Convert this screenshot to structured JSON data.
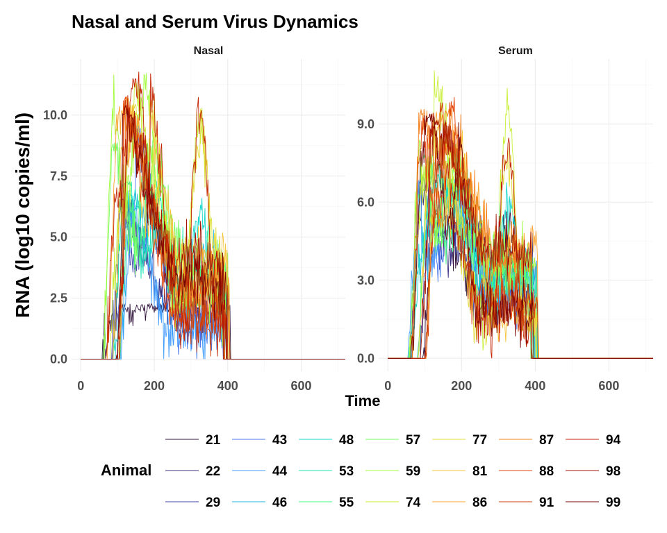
{
  "chart_data": {
    "type": "line",
    "title": "Nasal and Serum Virus Dynamics",
    "xlabel": "Time",
    "ylabel": "RNA (log10 copies/ml)",
    "legend": {
      "title": "Animal",
      "position": "bottom"
    },
    "grid": true,
    "panels": [
      {
        "name": "Nasal",
        "xlim": [
          -25,
          720
        ],
        "ylim": [
          -0.5,
          12.3
        ],
        "xticks": [
          0,
          200,
          400,
          600
        ],
        "xtick_labels": [
          "0",
          "200",
          "400",
          "600"
        ],
        "yticks": [
          0,
          2.5,
          5,
          7.5,
          10
        ],
        "ytick_labels": [
          "0.0",
          "2.5",
          "5.0",
          "7.5",
          "10.0"
        ],
        "max_y": 11.8
      },
      {
        "name": "Serum",
        "xlim": [
          -25,
          720
        ],
        "ylim": [
          -0.5,
          11.5
        ],
        "xticks": [
          0,
          200,
          400,
          600
        ],
        "xtick_labels": [
          "0",
          "200",
          "400",
          "600"
        ],
        "yticks": [
          0,
          3,
          6,
          9
        ],
        "ytick_labels": [
          "0.0",
          "3.0",
          "6.0",
          "9.0"
        ],
        "max_y": 11.1
      }
    ],
    "series": [
      {
        "name": "21",
        "color": "#30123b",
        "nasal_peak": 2.3,
        "serum_peak": 5.8
      },
      {
        "name": "22",
        "color": "#3b2d7f",
        "nasal_peak": 6.6,
        "serum_peak": 7.1
      },
      {
        "name": "29",
        "color": "#4145ab",
        "nasal_peak": 6.8,
        "serum_peak": 7.2
      },
      {
        "name": "43",
        "color": "#4675ed",
        "nasal_peak": 9.8,
        "serum_peak": 7.0
      },
      {
        "name": "44",
        "color": "#3e9bfe",
        "nasal_peak": 6.6,
        "serum_peak": 6.9
      },
      {
        "name": "46",
        "color": "#26b3e6",
        "nasal_peak": 6.5,
        "serum_peak": 6.6
      },
      {
        "name": "48",
        "color": "#18d6cb",
        "nasal_peak": 7.0,
        "serum_peak": 7.1
      },
      {
        "name": "53",
        "color": "#1ae4b6",
        "nasal_peak": 7.4,
        "serum_peak": 7.6
      },
      {
        "name": "55",
        "color": "#46f884",
        "nasal_peak": 8.1,
        "serum_peak": 7.9
      },
      {
        "name": "57",
        "color": "#72fe5e",
        "nasal_peak": 9.0,
        "serum_peak": 8.2
      },
      {
        "name": "59",
        "color": "#a2fc3c",
        "nasal_peak": 11.8,
        "serum_peak": 8.6
      },
      {
        "name": "74",
        "color": "#c7ef34",
        "nasal_peak": 11.4,
        "serum_peak": 11.1
      },
      {
        "name": "77",
        "color": "#e1dd37",
        "nasal_peak": 10.5,
        "serum_peak": 8.8
      },
      {
        "name": "81",
        "color": "#f6c33a",
        "nasal_peak": 10.7,
        "serum_peak": 9.0
      },
      {
        "name": "86",
        "color": "#fea431",
        "nasal_peak": 10.4,
        "serum_peak": 9.5
      },
      {
        "name": "87",
        "color": "#f3801c",
        "nasal_peak": 10.9,
        "serum_peak": 9.7
      },
      {
        "name": "88",
        "color": "#e4460a",
        "nasal_peak": 10.8,
        "serum_peak": 10.2
      },
      {
        "name": "91",
        "color": "#d03c05",
        "nasal_peak": 10.7,
        "serum_peak": 9.9
      },
      {
        "name": "94",
        "color": "#c42503",
        "nasal_peak": 11.8,
        "serum_peak": 9.6
      },
      {
        "name": "98",
        "color": "#a11201",
        "nasal_peak": 10.3,
        "serum_peak": 9.2
      },
      {
        "name": "99",
        "color": "#7a0403",
        "nasal_peak": 10.4,
        "serum_peak": 9.4
      }
    ]
  }
}
